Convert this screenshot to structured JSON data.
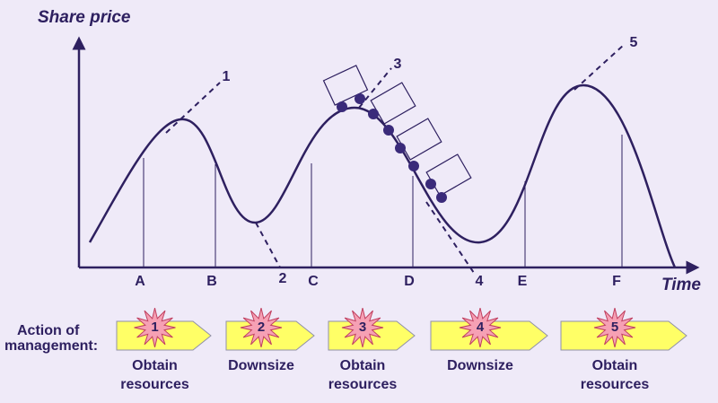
{
  "axis": {
    "y_label": "Share price",
    "x_label": "Time"
  },
  "time_points": [
    "A",
    "B",
    "C",
    "D",
    "E",
    "F"
  ],
  "trend_lines": [
    "1",
    "2",
    "3",
    "4",
    "5"
  ],
  "actions": {
    "label": [
      "Action of",
      "management:"
    ],
    "steps": [
      {
        "number": "1",
        "lines": [
          "Obtain",
          "resources"
        ]
      },
      {
        "number": "2",
        "lines": [
          "Downsize"
        ]
      },
      {
        "number": "3",
        "lines": [
          "Obtain",
          "resources"
        ]
      },
      {
        "number": "4",
        "lines": [
          "Downsize"
        ]
      },
      {
        "number": "5",
        "lines": [
          "Obtain",
          "resources"
        ]
      }
    ]
  }
}
